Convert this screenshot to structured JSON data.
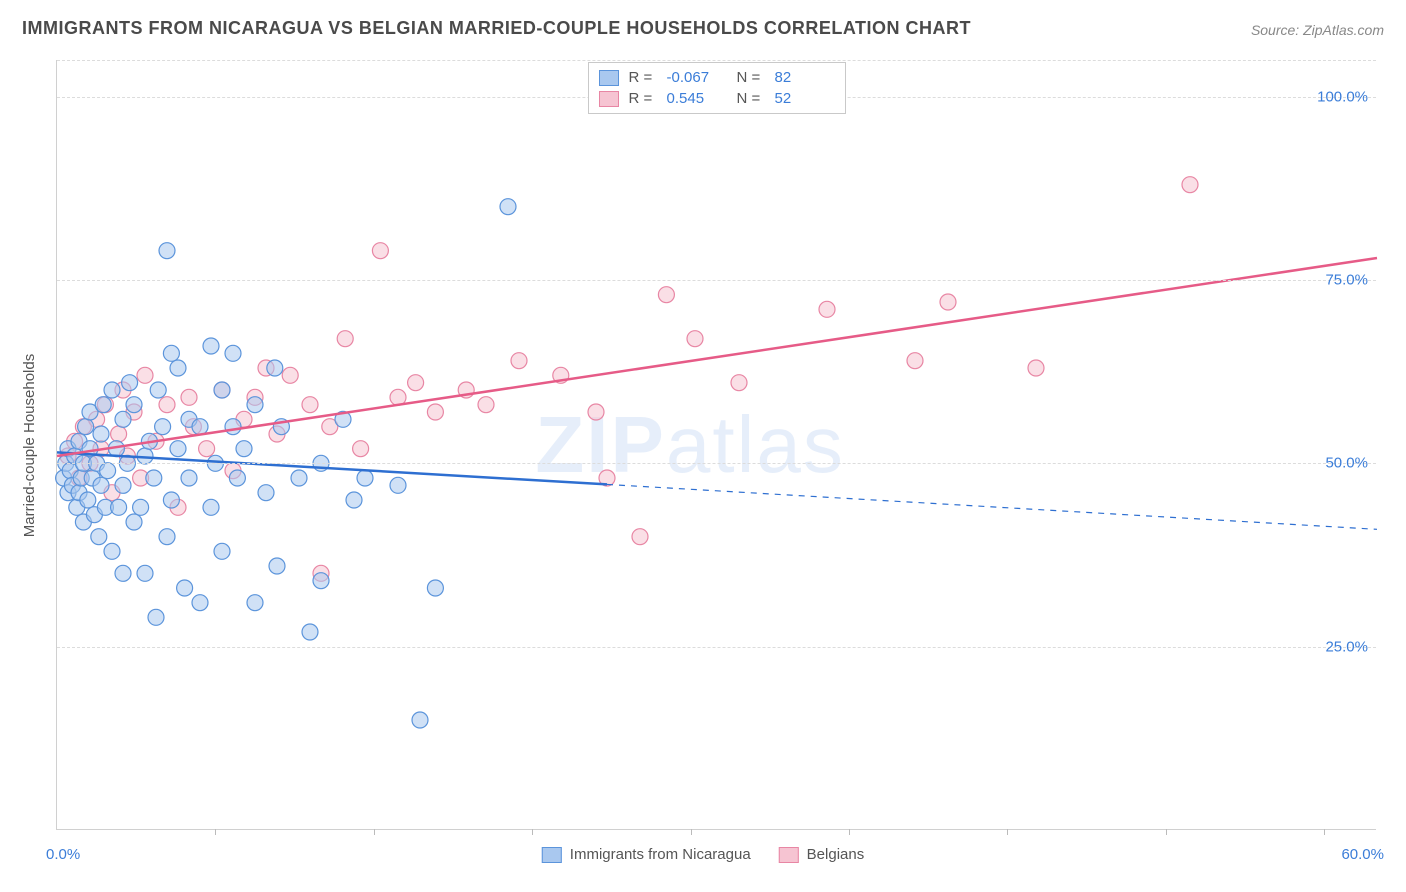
{
  "title": "IMMIGRANTS FROM NICARAGUA VS BELGIAN MARRIED-COUPLE HOUSEHOLDS CORRELATION CHART",
  "source_label": "Source: ZipAtlas.com",
  "ylabel": "Married-couple Households",
  "watermark": "ZIPatlas",
  "xlim": [
    0,
    60
  ],
  "ylim": [
    0,
    105
  ],
  "yticks": [
    {
      "v": 25,
      "label": "25.0%"
    },
    {
      "v": 50,
      "label": "50.0%"
    },
    {
      "v": 75,
      "label": "75.0%"
    },
    {
      "v": 100,
      "label": "100.0%"
    }
  ],
  "xticks_minor": [
    7.2,
    14.4,
    21.6,
    28.8,
    36.0,
    43.2,
    50.4,
    57.6
  ],
  "x_origin_label": "0.0%",
  "x_end_label": "60.0%",
  "colors": {
    "series_a_fill": "#a9c8ef",
    "series_a_stroke": "#5b94db",
    "series_a_line": "#2e6fd1",
    "series_b_fill": "#f6c4d2",
    "series_b_stroke": "#e886a4",
    "series_b_line": "#e65b87",
    "axis_text": "#3b7dd8",
    "grid": "#dcdcdc"
  },
  "marker_radius": 8,
  "marker_opacity": 0.55,
  "line_width": 2.5,
  "legend_top": {
    "rows": [
      {
        "swatch": "a",
        "R_label": "R =",
        "R": "-0.067",
        "N_label": "N =",
        "N": "82"
      },
      {
        "swatch": "b",
        "R_label": "R =",
        "R": "0.545",
        "N_label": "N =",
        "N": "52"
      }
    ]
  },
  "legend_bottom": {
    "items": [
      {
        "swatch": "a",
        "label": "Immigrants from Nicaragua"
      },
      {
        "swatch": "b",
        "label": "Belgians"
      }
    ]
  },
  "series_a": {
    "name": "Immigrants from Nicaragua",
    "points": [
      [
        0.3,
        48
      ],
      [
        0.4,
        50
      ],
      [
        0.5,
        46
      ],
      [
        0.5,
        52
      ],
      [
        0.6,
        49
      ],
      [
        0.7,
        47
      ],
      [
        0.8,
        51
      ],
      [
        0.9,
        44
      ],
      [
        1.0,
        53
      ],
      [
        1.0,
        46
      ],
      [
        1.1,
        48
      ],
      [
        1.2,
        50
      ],
      [
        1.2,
        42
      ],
      [
        1.3,
        55
      ],
      [
        1.4,
        45
      ],
      [
        1.5,
        52
      ],
      [
        1.5,
        57
      ],
      [
        1.6,
        48
      ],
      [
        1.7,
        43
      ],
      [
        1.8,
        50
      ],
      [
        1.9,
        40
      ],
      [
        2.0,
        54
      ],
      [
        2.0,
        47
      ],
      [
        2.1,
        58
      ],
      [
        2.2,
        44
      ],
      [
        2.3,
        49
      ],
      [
        2.5,
        60
      ],
      [
        2.5,
        38
      ],
      [
        2.7,
        52
      ],
      [
        2.8,
        44
      ],
      [
        3.0,
        56
      ],
      [
        3.0,
        35
      ],
      [
        3.0,
        47
      ],
      [
        3.2,
        50
      ],
      [
        3.3,
        61
      ],
      [
        3.5,
        42
      ],
      [
        3.5,
        58
      ],
      [
        3.8,
        44
      ],
      [
        4.0,
        51
      ],
      [
        4.0,
        35
      ],
      [
        4.2,
        53
      ],
      [
        4.4,
        48
      ],
      [
        4.5,
        29
      ],
      [
        4.6,
        60
      ],
      [
        4.8,
        55
      ],
      [
        5.0,
        40
      ],
      [
        5.0,
        79
      ],
      [
        5.2,
        65
      ],
      [
        5.2,
        45
      ],
      [
        5.5,
        52
      ],
      [
        5.5,
        63
      ],
      [
        5.8,
        33
      ],
      [
        6.0,
        56
      ],
      [
        6.0,
        48
      ],
      [
        6.5,
        55
      ],
      [
        6.5,
        31
      ],
      [
        7.0,
        66
      ],
      [
        7.0,
        44
      ],
      [
        7.2,
        50
      ],
      [
        7.5,
        60
      ],
      [
        7.5,
        38
      ],
      [
        8.0,
        55
      ],
      [
        8.0,
        65
      ],
      [
        8.2,
        48
      ],
      [
        8.5,
        52
      ],
      [
        9.0,
        58
      ],
      [
        9.0,
        31
      ],
      [
        9.5,
        46
      ],
      [
        9.9,
        63
      ],
      [
        10.0,
        36
      ],
      [
        10.2,
        55
      ],
      [
        11.0,
        48
      ],
      [
        11.5,
        27
      ],
      [
        12.0,
        50
      ],
      [
        12.0,
        34
      ],
      [
        13.0,
        56
      ],
      [
        13.5,
        45
      ],
      [
        14.0,
        48
      ],
      [
        15.5,
        47
      ],
      [
        16.5,
        15
      ],
      [
        17.2,
        33
      ],
      [
        20.5,
        85
      ]
    ],
    "trend": {
      "x1": 0,
      "y1": 51.5,
      "x2": 60,
      "y2": 41,
      "solid_until_x": 25
    }
  },
  "series_b": {
    "name": "Belgians",
    "points": [
      [
        0.5,
        51
      ],
      [
        0.8,
        53
      ],
      [
        1.0,
        48
      ],
      [
        1.2,
        55
      ],
      [
        1.5,
        50
      ],
      [
        1.8,
        56
      ],
      [
        2.0,
        52
      ],
      [
        2.2,
        58
      ],
      [
        2.5,
        46
      ],
      [
        2.8,
        54
      ],
      [
        3.0,
        60
      ],
      [
        3.2,
        51
      ],
      [
        3.5,
        57
      ],
      [
        3.8,
        48
      ],
      [
        4.0,
        62
      ],
      [
        4.5,
        53
      ],
      [
        5.0,
        58
      ],
      [
        5.5,
        44
      ],
      [
        6.0,
        59
      ],
      [
        6.2,
        55
      ],
      [
        6.8,
        52
      ],
      [
        7.5,
        60
      ],
      [
        8.0,
        49
      ],
      [
        8.5,
        56
      ],
      [
        9.0,
        59
      ],
      [
        9.5,
        63
      ],
      [
        10.0,
        54
      ],
      [
        10.6,
        62
      ],
      [
        11.5,
        58
      ],
      [
        12.0,
        35
      ],
      [
        12.4,
        55
      ],
      [
        13.1,
        67
      ],
      [
        13.8,
        52
      ],
      [
        14.7,
        79
      ],
      [
        15.5,
        59
      ],
      [
        16.3,
        61
      ],
      [
        17.2,
        57
      ],
      [
        18.6,
        60
      ],
      [
        19.5,
        58
      ],
      [
        21.0,
        64
      ],
      [
        22.9,
        62
      ],
      [
        24.5,
        57
      ],
      [
        25.0,
        48
      ],
      [
        26.5,
        40
      ],
      [
        27.7,
        73
      ],
      [
        29.0,
        67
      ],
      [
        31.0,
        61
      ],
      [
        35.0,
        71
      ],
      [
        39.0,
        64
      ],
      [
        40.5,
        72
      ],
      [
        44.5,
        63
      ],
      [
        51.5,
        88
      ]
    ],
    "trend": {
      "x1": 0,
      "y1": 51,
      "x2": 60,
      "y2": 78,
      "solid_until_x": 60
    }
  }
}
